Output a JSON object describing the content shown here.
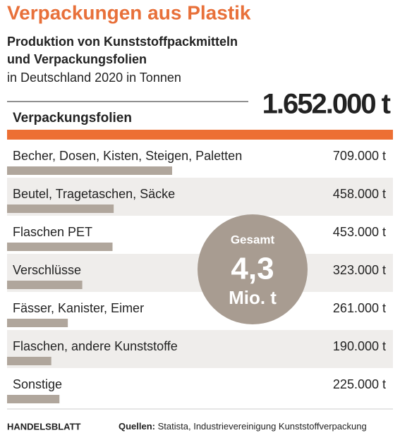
{
  "chart_data": {
    "type": "bar",
    "title": "Verpackungen aus Plastik",
    "subtitle": [
      "Produktion von Kunststoffpackmitteln",
      "und Verpackungsfolien",
      "in Deutschland 2020 in Tonnen"
    ],
    "group": {
      "label": "Verpackungsfolien",
      "value": 1652000,
      "value_label": "1.652.000 t"
    },
    "total": {
      "label": "Gesamt",
      "value": 4.3,
      "value_label": "4,3",
      "unit": "Mio. t"
    },
    "categories": [
      "Becher, Dosen, Kisten, Steigen, Paletten",
      "Beutel, Tragetaschen, Säcke",
      "Flaschen PET",
      "Verschlüsse",
      "Fässer, Kanister, Eimer",
      "Flaschen, andere Kunststoffe",
      "Sonstige"
    ],
    "values": [
      709000,
      458000,
      453000,
      323000,
      261000,
      190000,
      225000
    ],
    "value_labels": [
      "709.000 t",
      "458.000 t",
      "453.000 t",
      "323.000 t",
      "261.000 t",
      "190.000 t",
      "225.000 t"
    ],
    "color": "#b0a69c",
    "source_brand": "HANDELSBLATT",
    "source_label": "Quellen:",
    "source": "Statista, Industrievereinigung Kunststoffverpackung"
  }
}
